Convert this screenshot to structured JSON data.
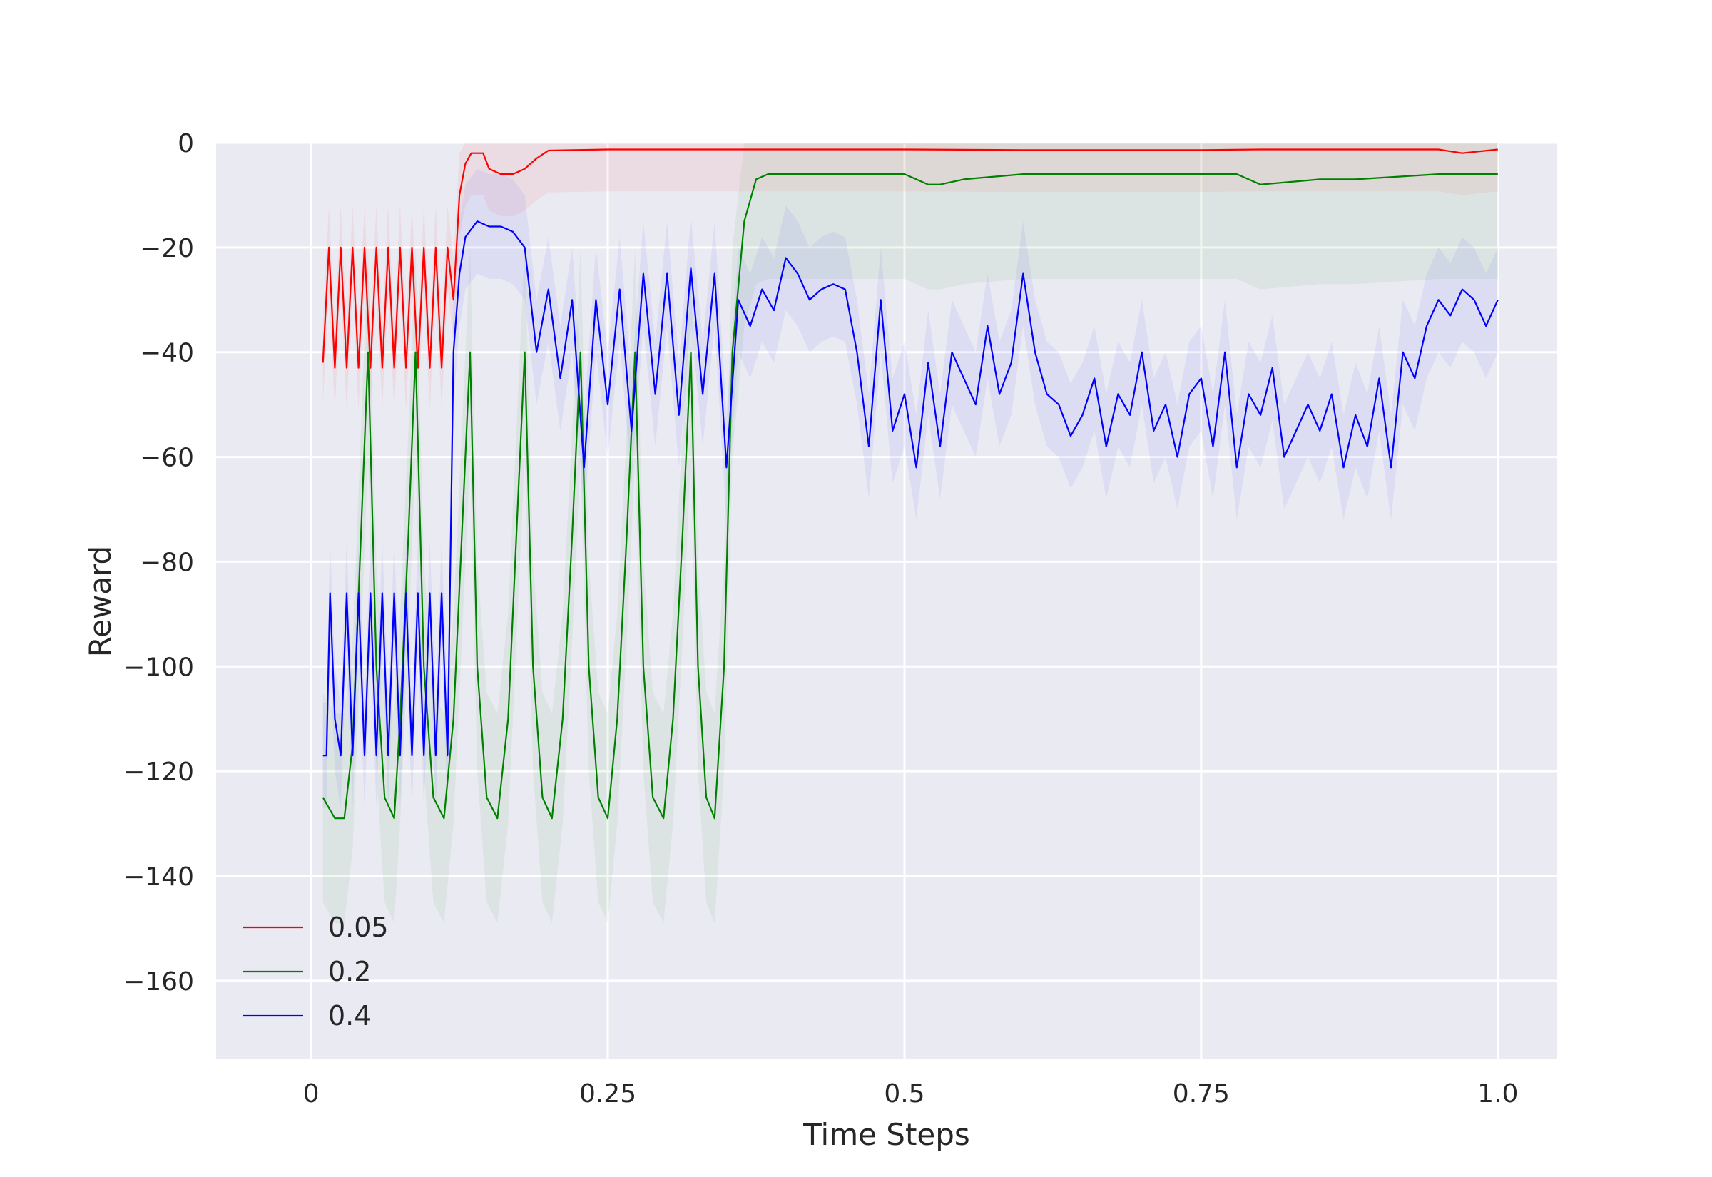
{
  "chart_data": {
    "type": "line",
    "title": "",
    "xlabel": "Time Steps",
    "ylabel": "Reward",
    "xlim": [
      -0.08,
      1.05
    ],
    "ylim": [
      -175,
      0
    ],
    "x_ticks": [
      0,
      0.25,
      0.5,
      0.75,
      1.0
    ],
    "x_tick_labels": [
      "0",
      "0.25",
      "0.5",
      "0.75",
      "1.0"
    ],
    "y_ticks": [
      0,
      -20,
      -40,
      -60,
      -80,
      -100,
      -120,
      -140,
      -160
    ],
    "y_tick_labels": [
      "0",
      "−20",
      "−40",
      "−60",
      "−80",
      "−100",
      "−120",
      "−140",
      "−160"
    ],
    "grid": true,
    "legend_position": "bottom-left",
    "background": "#eaeaf2",
    "series": [
      {
        "name": "0.05",
        "color": "#ff0000",
        "x": [
          0.01,
          0.015,
          0.02,
          0.025,
          0.03,
          0.035,
          0.04,
          0.045,
          0.05,
          0.055,
          0.06,
          0.065,
          0.07,
          0.075,
          0.08,
          0.085,
          0.09,
          0.095,
          0.1,
          0.105,
          0.11,
          0.115,
          0.12,
          0.125,
          0.13,
          0.135,
          0.14,
          0.145,
          0.15,
          0.16,
          0.17,
          0.18,
          0.19,
          0.2,
          0.25,
          0.3,
          0.4,
          0.5,
          0.6,
          0.7,
          0.75,
          0.8,
          0.85,
          0.9,
          0.95,
          0.97,
          1.0
        ],
        "y": [
          -42,
          -20,
          -43,
          -20,
          -43,
          -20,
          -43,
          -20,
          -43,
          -20,
          -43,
          -20,
          -43,
          -20,
          -43,
          -20,
          -43,
          -20,
          -43,
          -20,
          -43,
          -20,
          -30,
          -10,
          -4,
          -2,
          -2,
          -2,
          -5,
          -6,
          -6,
          -5,
          -3,
          -1.5,
          -1.3,
          -1.3,
          -1.3,
          -1.3,
          -1.4,
          -1.4,
          -1.4,
          -1.3,
          -1.3,
          -1.3,
          -1.3,
          -2,
          -1.3
        ],
        "band": 8
      },
      {
        "name": "0.2",
        "color": "#008000",
        "x": [
          0.01,
          0.02,
          0.028,
          0.035,
          0.042,
          0.048,
          0.055,
          0.062,
          0.07,
          0.075,
          0.082,
          0.088,
          0.095,
          0.103,
          0.112,
          0.12,
          0.127,
          0.134,
          0.14,
          0.148,
          0.157,
          0.166,
          0.173,
          0.18,
          0.187,
          0.195,
          0.203,
          0.212,
          0.22,
          0.227,
          0.234,
          0.242,
          0.25,
          0.258,
          0.266,
          0.273,
          0.28,
          0.288,
          0.297,
          0.305,
          0.313,
          0.32,
          0.326,
          0.333,
          0.34,
          0.348,
          0.355,
          0.365,
          0.375,
          0.385,
          0.4,
          0.45,
          0.5,
          0.52,
          0.53,
          0.55,
          0.6,
          0.7,
          0.78,
          0.8,
          0.85,
          0.88,
          0.95,
          1.0
        ],
        "y": [
          -125,
          -129,
          -129,
          -115,
          -75,
          -40,
          -100,
          -125,
          -129,
          -110,
          -75,
          -40,
          -100,
          -125,
          -129,
          -110,
          -75,
          -40,
          -100,
          -125,
          -129,
          -110,
          -75,
          -40,
          -100,
          -125,
          -129,
          -110,
          -75,
          -40,
          -100,
          -125,
          -129,
          -110,
          -75,
          -40,
          -100,
          -125,
          -129,
          -110,
          -75,
          -40,
          -100,
          -125,
          -129,
          -100,
          -40,
          -15,
          -7,
          -6,
          -6,
          -6,
          -6,
          -8,
          -8,
          -7,
          -6,
          -6,
          -6,
          -8,
          -7,
          -7,
          -6,
          -6
        ],
        "band": 20
      },
      {
        "name": "0.4",
        "color": "#0000ff",
        "x": [
          0.01,
          0.013,
          0.016,
          0.02,
          0.025,
          0.03,
          0.035,
          0.04,
          0.045,
          0.05,
          0.055,
          0.06,
          0.065,
          0.07,
          0.075,
          0.08,
          0.085,
          0.09,
          0.095,
          0.1,
          0.105,
          0.11,
          0.115,
          0.12,
          0.125,
          0.13,
          0.14,
          0.15,
          0.16,
          0.17,
          0.18,
          0.185,
          0.19,
          0.2,
          0.21,
          0.22,
          0.23,
          0.24,
          0.25,
          0.26,
          0.27,
          0.28,
          0.29,
          0.3,
          0.31,
          0.32,
          0.33,
          0.34,
          0.35,
          0.36,
          0.37,
          0.38,
          0.39,
          0.4,
          0.41,
          0.42,
          0.43,
          0.44,
          0.45,
          0.46,
          0.47,
          0.48,
          0.49,
          0.5,
          0.51,
          0.52,
          0.53,
          0.54,
          0.55,
          0.56,
          0.57,
          0.58,
          0.59,
          0.6,
          0.61,
          0.62,
          0.63,
          0.64,
          0.65,
          0.66,
          0.67,
          0.68,
          0.69,
          0.7,
          0.71,
          0.72,
          0.73,
          0.74,
          0.75,
          0.76,
          0.77,
          0.78,
          0.79,
          0.8,
          0.81,
          0.82,
          0.83,
          0.84,
          0.85,
          0.86,
          0.87,
          0.88,
          0.89,
          0.9,
          0.91,
          0.92,
          0.93,
          0.94,
          0.95,
          0.96,
          0.97,
          0.98,
          0.99,
          1.0
        ],
        "y": [
          -117,
          -117,
          -86,
          -110,
          -117,
          -86,
          -117,
          -86,
          -117,
          -86,
          -117,
          -86,
          -117,
          -86,
          -117,
          -86,
          -117,
          -86,
          -117,
          -86,
          -117,
          -86,
          -117,
          -40,
          -25,
          -18,
          -15,
          -16,
          -16,
          -17,
          -20,
          -30,
          -40,
          -28,
          -45,
          -30,
          -62,
          -30,
          -50,
          -28,
          -55,
          -25,
          -48,
          -25,
          -52,
          -24,
          -48,
          -25,
          -62,
          -30,
          -35,
          -28,
          -32,
          -22,
          -25,
          -30,
          -28,
          -27,
          -28,
          -40,
          -58,
          -30,
          -55,
          -48,
          -62,
          -42,
          -58,
          -40,
          -45,
          -50,
          -35,
          -48,
          -42,
          -25,
          -40,
          -48,
          -50,
          -56,
          -52,
          -45,
          -58,
          -48,
          -52,
          -40,
          -55,
          -50,
          -60,
          -48,
          -45,
          -58,
          -40,
          -62,
          -48,
          -52,
          -43,
          -60,
          -55,
          -50,
          -55,
          -48,
          -62,
          -52,
          -58,
          -45,
          -62,
          -40,
          -45,
          -35,
          -30,
          -33,
          -28,
          -30,
          -35,
          -30
        ],
        "band": 10
      }
    ]
  }
}
